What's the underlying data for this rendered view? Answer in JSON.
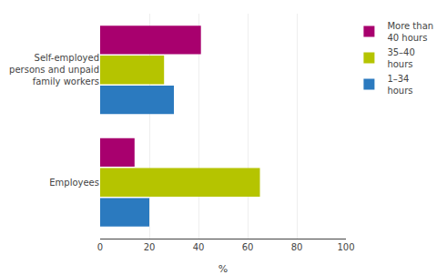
{
  "chart_data": {
    "type": "bar",
    "orientation": "horizontal",
    "categories": [
      "Self-employed\npersons and unpaid\nfamily workers",
      "Employees"
    ],
    "series": [
      {
        "name": "More than\n40 hours",
        "color": "#a8006e",
        "values": [
          41,
          14
        ]
      },
      {
        "name": "35–40\nhours",
        "color": "#b5c400",
        "values": [
          26,
          65
        ]
      },
      {
        "name": "1–34\nhours",
        "color": "#2b7abf",
        "values": [
          30,
          20
        ]
      }
    ],
    "xlabel": "%",
    "xlim": [
      0,
      100
    ],
    "xticks": [
      0,
      20,
      40,
      60,
      80,
      100
    ],
    "grid": true,
    "legend": "right"
  }
}
